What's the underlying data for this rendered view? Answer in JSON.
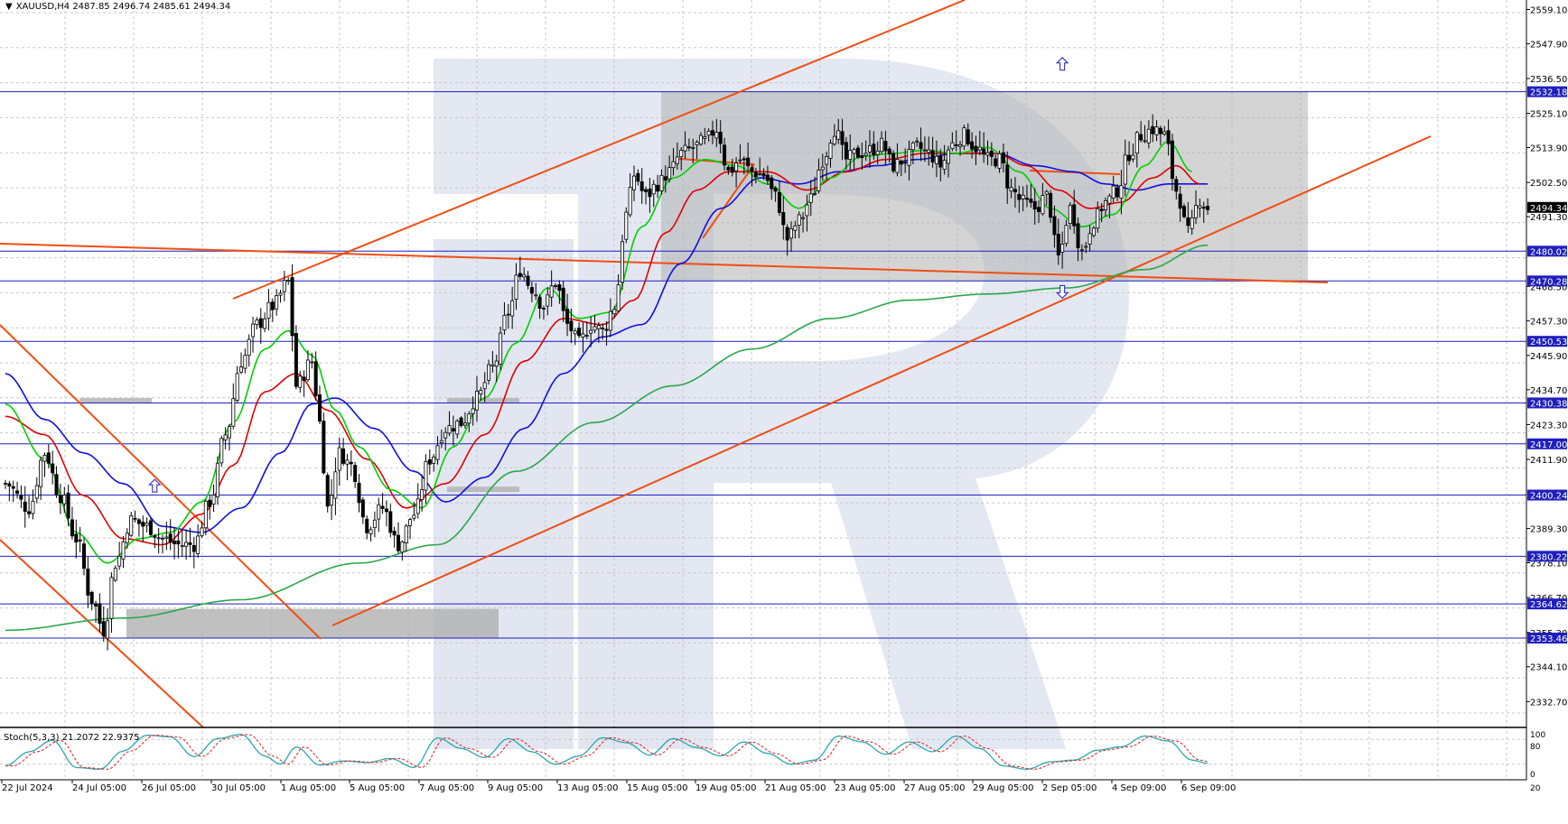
{
  "header": {
    "symbol_arrow": "▼",
    "text": "XAUUSD,H4  2487.85 2496.74 2485.61 2494.34"
  },
  "indicator": {
    "label": "Stoch(5,3,3) 21.2072 22.9375",
    "levels": [
      "100",
      "80",
      "20",
      "0"
    ]
  },
  "colors": {
    "grid": "#c8c8c8",
    "support": "#1f1fbf",
    "trend": "#f04e12",
    "ma_fast": "#00d000",
    "ma_mid": "#e00000",
    "ma_slow": "#1010e0",
    "ma_long": "#2aa84a",
    "stoch_main": "#2aa8b0",
    "stoch_signal": "#e03030",
    "box": "#b0b0b0",
    "bull": "#ffffff",
    "bear": "#000000"
  },
  "chart_data": {
    "type": "candlestick",
    "symbol": "XAUUSD",
    "timeframe": "H4",
    "ylim": [
      2326,
      2561
    ],
    "price_ticks": [
      "2559.10",
      "2547.90",
      "2536.50",
      "2525.10",
      "2513.90",
      "2502.50",
      "2491.30",
      "2468.50",
      "2457.30",
      "2445.90",
      "2434.70",
      "2423.30",
      "2411.90",
      "2389.30",
      "2378.10",
      "2366.70",
      "2355.30",
      "2344.10",
      "2332.70"
    ],
    "level_labels": [
      "2532.18",
      "2480.02",
      "2470.28",
      "2450.53",
      "2430.38",
      "2417.00",
      "2400.24",
      "2380.22",
      "2364.62",
      "2353.46"
    ],
    "current_price": "2494.34",
    "date_labels": [
      "22 Jul 2024",
      "24 Jul 05:00",
      "26 Jul 05:00",
      "30 Jul 05:00",
      "1 Aug 05:00",
      "5 Aug 05:00",
      "7 Aug 05:00",
      "9 Aug 05:00",
      "13 Aug 05:00",
      "15 Aug 05:00",
      "19 Aug 05:00",
      "21 Aug 05:00",
      "23 Aug 05:00",
      "27 Aug 05:00",
      "29 Aug 05:00",
      "2 Sep 05:00",
      "4 Sep 09:00",
      "6 Sep 09:00"
    ],
    "close_anchors": [
      [
        0,
        2404
      ],
      [
        6,
        2396
      ],
      [
        10,
        2414
      ],
      [
        14,
        2400
      ],
      [
        18,
        2386
      ],
      [
        22,
        2366
      ],
      [
        25,
        2356
      ],
      [
        28,
        2378
      ],
      [
        32,
        2392
      ],
      [
        36,
        2390
      ],
      [
        40,
        2386
      ],
      [
        44,
        2384
      ],
      [
        48,
        2384
      ],
      [
        52,
        2398
      ],
      [
        56,
        2420
      ],
      [
        60,
        2444
      ],
      [
        64,
        2456
      ],
      [
        68,
        2462
      ],
      [
        72,
        2470
      ],
      [
        74,
        2436
      ],
      [
        78,
        2444
      ],
      [
        80,
        2424
      ],
      [
        82,
        2396
      ],
      [
        85,
        2414
      ],
      [
        88,
        2410
      ],
      [
        92,
        2390
      ],
      [
        96,
        2396
      ],
      [
        100,
        2384
      ],
      [
        104,
        2394
      ],
      [
        108,
        2412
      ],
      [
        112,
        2422
      ],
      [
        116,
        2424
      ],
      [
        120,
        2432
      ],
      [
        124,
        2442
      ],
      [
        128,
        2460
      ],
      [
        131,
        2474
      ],
      [
        134,
        2468
      ],
      [
        137,
        2462
      ],
      [
        140,
        2470
      ],
      [
        143,
        2456
      ],
      [
        146,
        2450
      ],
      [
        149,
        2456
      ],
      [
        152,
        2454
      ],
      [
        155,
        2462
      ],
      [
        158,
        2492
      ],
      [
        160,
        2505
      ],
      [
        163,
        2498
      ],
      [
        166,
        2502
      ],
      [
        169,
        2506
      ],
      [
        172,
        2512
      ],
      [
        175,
        2514
      ],
      [
        178,
        2516
      ],
      [
        181,
        2520
      ],
      [
        184,
        2506
      ],
      [
        187,
        2510
      ],
      [
        190,
        2506
      ],
      [
        193,
        2505
      ],
      [
        196,
        2498
      ],
      [
        199,
        2484
      ],
      [
        202,
        2490
      ],
      [
        205,
        2497
      ],
      [
        208,
        2510
      ],
      [
        211,
        2520
      ],
      [
        214,
        2510
      ],
      [
        217,
        2512
      ],
      [
        220,
        2513
      ],
      [
        223,
        2515
      ],
      [
        226,
        2508
      ],
      [
        229,
        2510
      ],
      [
        232,
        2514
      ],
      [
        235,
        2512
      ],
      [
        238,
        2508
      ],
      [
        241,
        2515
      ],
      [
        244,
        2518
      ],
      [
        247,
        2514
      ],
      [
        250,
        2510
      ],
      [
        253,
        2510
      ],
      [
        256,
        2500
      ],
      [
        259,
        2496
      ],
      [
        262,
        2494
      ],
      [
        265,
        2498
      ],
      [
        268,
        2478
      ],
      [
        271,
        2494
      ],
      [
        274,
        2480
      ],
      [
        277,
        2490
      ],
      [
        280,
        2496
      ],
      [
        283,
        2500
      ],
      [
        286,
        2512
      ],
      [
        289,
        2518
      ],
      [
        292,
        2520
      ],
      [
        295,
        2518
      ],
      [
        298,
        2500
      ],
      [
        301,
        2486
      ],
      [
        304,
        2497
      ],
      [
        306,
        2494
      ]
    ],
    "ma_fast_anchors": [
      [
        0,
        2430
      ],
      [
        10,
        2412
      ],
      [
        18,
        2388
      ],
      [
        26,
        2378
      ],
      [
        34,
        2386
      ],
      [
        42,
        2388
      ],
      [
        50,
        2398
      ],
      [
        58,
        2424
      ],
      [
        66,
        2448
      ],
      [
        72,
        2454
      ],
      [
        78,
        2446
      ],
      [
        84,
        2428
      ],
      [
        90,
        2416
      ],
      [
        98,
        2402
      ],
      [
        106,
        2396
      ],
      [
        114,
        2416
      ],
      [
        122,
        2432
      ],
      [
        130,
        2450
      ],
      [
        138,
        2468
      ],
      [
        146,
        2458
      ],
      [
        154,
        2460
      ],
      [
        162,
        2488
      ],
      [
        170,
        2504
      ],
      [
        178,
        2510
      ],
      [
        186,
        2508
      ],
      [
        194,
        2502
      ],
      [
        202,
        2494
      ],
      [
        210,
        2504
      ],
      [
        218,
        2511
      ],
      [
        226,
        2512
      ],
      [
        234,
        2513
      ],
      [
        242,
        2512
      ],
      [
        250,
        2514
      ],
      [
        258,
        2506
      ],
      [
        266,
        2494
      ],
      [
        274,
        2488
      ],
      [
        282,
        2492
      ],
      [
        290,
        2508
      ],
      [
        296,
        2516
      ],
      [
        302,
        2506
      ]
    ],
    "ma_mid_anchors": [
      [
        0,
        2426
      ],
      [
        10,
        2420
      ],
      [
        20,
        2400
      ],
      [
        30,
        2386
      ],
      [
        40,
        2384
      ],
      [
        50,
        2394
      ],
      [
        58,
        2410
      ],
      [
        66,
        2434
      ],
      [
        74,
        2440
      ],
      [
        82,
        2428
      ],
      [
        92,
        2412
      ],
      [
        102,
        2396
      ],
      [
        112,
        2404
      ],
      [
        122,
        2420
      ],
      [
        132,
        2444
      ],
      [
        142,
        2458
      ],
      [
        152,
        2456
      ],
      [
        160,
        2464
      ],
      [
        168,
        2486
      ],
      [
        176,
        2500
      ],
      [
        184,
        2506
      ],
      [
        194,
        2506
      ],
      [
        204,
        2500
      ],
      [
        214,
        2506
      ],
      [
        224,
        2510
      ],
      [
        234,
        2512
      ],
      [
        244,
        2512
      ],
      [
        252,
        2512
      ],
      [
        260,
        2508
      ],
      [
        268,
        2500
      ],
      [
        276,
        2494
      ],
      [
        284,
        2496
      ],
      [
        292,
        2504
      ],
      [
        298,
        2508
      ],
      [
        304,
        2502
      ]
    ],
    "ma_slow_anchors": [
      [
        0,
        2440
      ],
      [
        10,
        2425
      ],
      [
        20,
        2414
      ],
      [
        30,
        2404
      ],
      [
        40,
        2390
      ],
      [
        50,
        2388
      ],
      [
        60,
        2396
      ],
      [
        70,
        2414
      ],
      [
        78,
        2430
      ],
      [
        84,
        2432
      ],
      [
        94,
        2422
      ],
      [
        104,
        2408
      ],
      [
        112,
        2398
      ],
      [
        122,
        2406
      ],
      [
        132,
        2422
      ],
      [
        142,
        2440
      ],
      [
        152,
        2452
      ],
      [
        162,
        2456
      ],
      [
        172,
        2476
      ],
      [
        182,
        2494
      ],
      [
        192,
        2504
      ],
      [
        202,
        2502
      ],
      [
        212,
        2506
      ],
      [
        222,
        2508
      ],
      [
        232,
        2510
      ],
      [
        242,
        2512
      ],
      [
        252,
        2512
      ],
      [
        262,
        2508
      ],
      [
        272,
        2506
      ],
      [
        280,
        2502
      ],
      [
        288,
        2500
      ],
      [
        296,
        2502
      ],
      [
        306,
        2502
      ]
    ],
    "ma_long_anchors": [
      [
        0,
        2356
      ],
      [
        30,
        2360
      ],
      [
        60,
        2366
      ],
      [
        90,
        2378
      ],
      [
        110,
        2384
      ],
      [
        130,
        2408
      ],
      [
        150,
        2424
      ],
      [
        170,
        2436
      ],
      [
        190,
        2448
      ],
      [
        210,
        2458
      ],
      [
        230,
        2464
      ],
      [
        250,
        2466
      ],
      [
        270,
        2468
      ],
      [
        290,
        2474
      ],
      [
        306,
        2482
      ]
    ],
    "stoch_anchors": [
      [
        0,
        16
      ],
      [
        6,
        50
      ],
      [
        12,
        78
      ],
      [
        18,
        12
      ],
      [
        24,
        8
      ],
      [
        30,
        52
      ],
      [
        36,
        90
      ],
      [
        42,
        86
      ],
      [
        48,
        38
      ],
      [
        54,
        82
      ],
      [
        60,
        92
      ],
      [
        66,
        40
      ],
      [
        70,
        20
      ],
      [
        74,
        62
      ],
      [
        80,
        18
      ],
      [
        86,
        28
      ],
      [
        92,
        24
      ],
      [
        98,
        34
      ],
      [
        104,
        12
      ],
      [
        110,
        84
      ],
      [
        116,
        58
      ],
      [
        122,
        36
      ],
      [
        128,
        82
      ],
      [
        134,
        50
      ],
      [
        140,
        20
      ],
      [
        146,
        40
      ],
      [
        152,
        84
      ],
      [
        158,
        72
      ],
      [
        164,
        42
      ],
      [
        170,
        82
      ],
      [
        176,
        60
      ],
      [
        182,
        40
      ],
      [
        188,
        74
      ],
      [
        194,
        46
      ],
      [
        200,
        20
      ],
      [
        206,
        30
      ],
      [
        212,
        88
      ],
      [
        218,
        74
      ],
      [
        224,
        44
      ],
      [
        230,
        74
      ],
      [
        236,
        50
      ],
      [
        242,
        88
      ],
      [
        248,
        58
      ],
      [
        254,
        16
      ],
      [
        260,
        8
      ],
      [
        266,
        26
      ],
      [
        272,
        30
      ],
      [
        278,
        54
      ],
      [
        284,
        62
      ],
      [
        290,
        88
      ],
      [
        296,
        76
      ],
      [
        302,
        30
      ],
      [
        306,
        22
      ]
    ],
    "support_levels": [
      2532.18,
      2480.02,
      2470.28,
      2450.53,
      2430.38,
      2417.0,
      2400.24,
      2380.22,
      2364.62,
      2353.46
    ],
    "range_box": {
      "x1": 2016,
      "x2": 2108,
      "top": 2532.18,
      "bottom": 2470.28
    },
    "arrows": [
      {
        "dir": "up",
        "bar": 38,
        "price": 2403
      },
      {
        "dir": "up",
        "bar": 269,
        "price": 2541
      },
      {
        "dir": "down",
        "bar": 269,
        "price": 2467
      }
    ]
  }
}
